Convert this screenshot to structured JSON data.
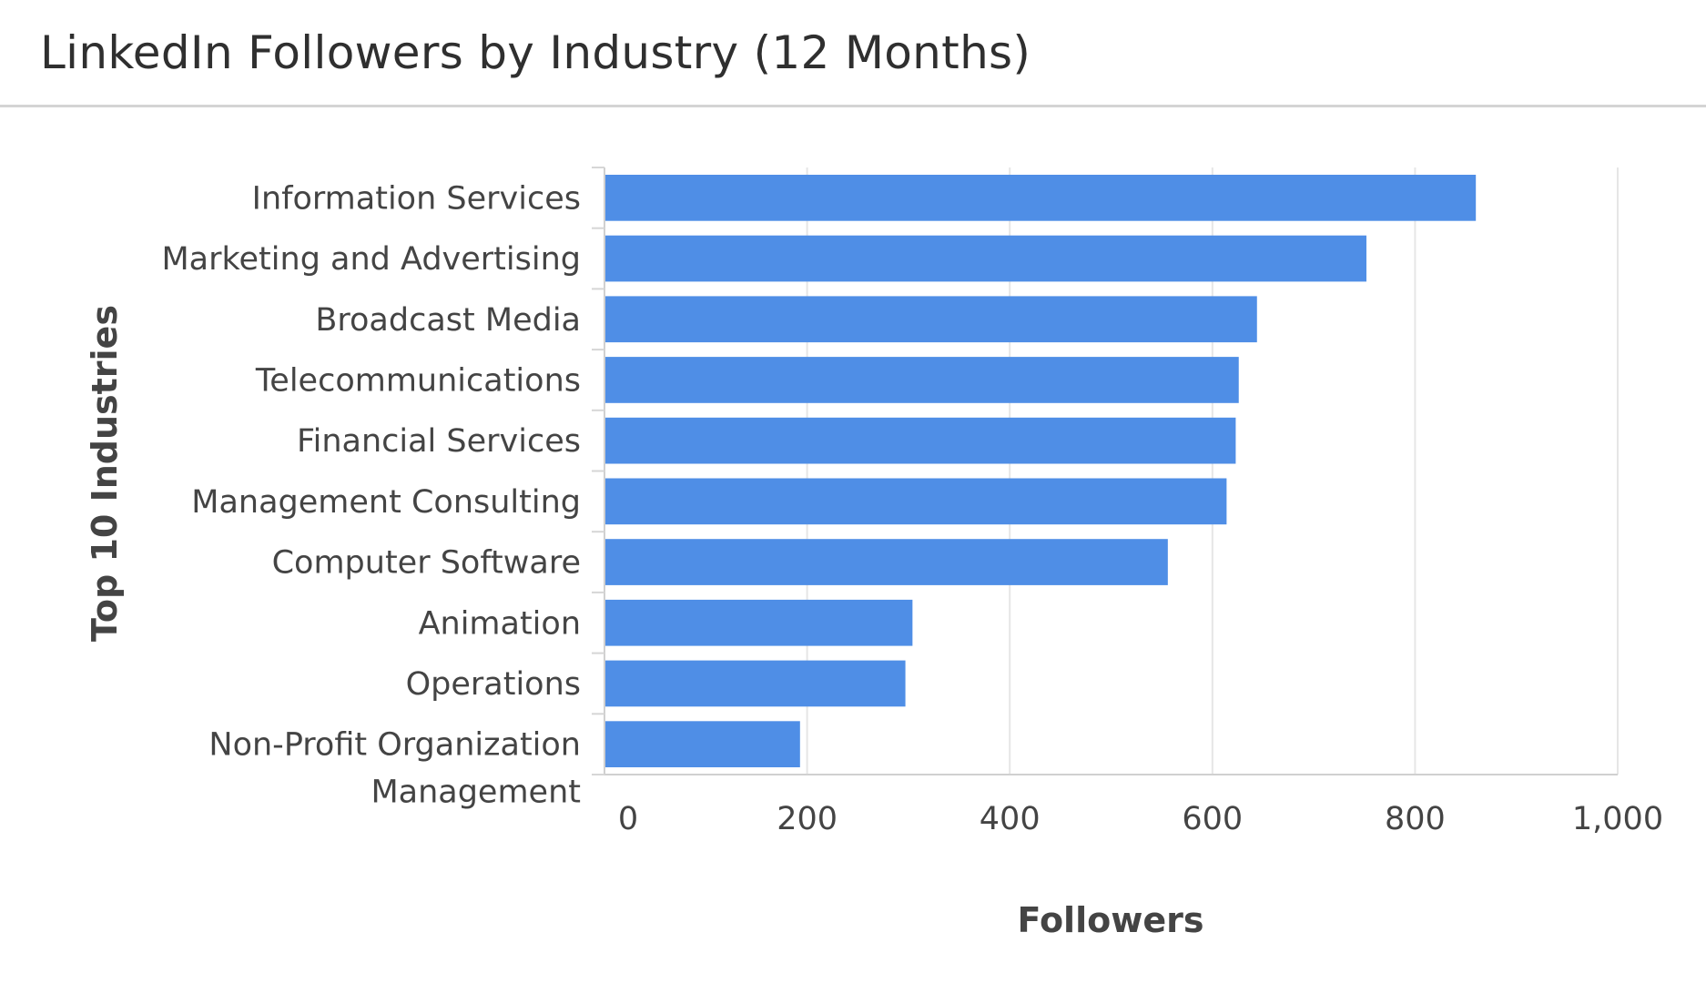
{
  "header": {
    "title": "LinkedIn Followers by Industry (12 Months)"
  },
  "chart_data": {
    "type": "bar",
    "orientation": "horizontal",
    "title": "LinkedIn Followers by Industry (12 Months)",
    "xlabel": "Followers",
    "ylabel": "Top 10 Industries",
    "categories": [
      "Information Services",
      "Marketing and Advertising",
      "Broadcast Media",
      "Telecommunications",
      "Financial Services",
      "Management Consulting",
      "Computer Software",
      "Animation",
      "Operations",
      "Non-Profit Organization Management"
    ],
    "category_label_lines": [
      [
        "Information Services"
      ],
      [
        "Marketing and Advertising"
      ],
      [
        "Broadcast Media"
      ],
      [
        "Telecommunications"
      ],
      [
        "Financial Services"
      ],
      [
        "Management Consulting"
      ],
      [
        "Computer Software"
      ],
      [
        "Animation"
      ],
      [
        "Operations"
      ],
      [
        "Non-Profit Organization",
        "Management"
      ]
    ],
    "values": [
      860,
      752,
      644,
      626,
      623,
      614,
      556,
      304,
      297,
      193
    ],
    "xlim": [
      0,
      1000
    ],
    "xticks": [
      0,
      200,
      400,
      600,
      800,
      1000
    ],
    "xtick_labels": [
      "0",
      "200",
      "400",
      "600",
      "800",
      "1,000"
    ],
    "grid": true,
    "legend": "none",
    "colors": {
      "bar": "#4f8ee6",
      "grid": "#e6e6e6"
    }
  }
}
